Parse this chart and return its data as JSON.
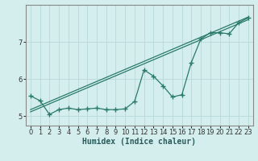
{
  "title": "",
  "xlabel": "Humidex (Indice chaleur)",
  "bg_color": "#d4eeee",
  "line_color": "#2a7a6a",
  "grid_color": "#b8d8d8",
  "x_data": [
    0,
    1,
    2,
    3,
    4,
    5,
    6,
    7,
    8,
    9,
    10,
    11,
    12,
    13,
    14,
    15,
    16,
    17,
    18,
    19,
    20,
    21,
    22,
    23
  ],
  "y_data": [
    5.55,
    5.42,
    5.05,
    5.18,
    5.22,
    5.18,
    5.2,
    5.22,
    5.18,
    5.18,
    5.2,
    5.4,
    6.25,
    6.08,
    5.82,
    5.52,
    5.58,
    6.45,
    7.08,
    7.25,
    7.25,
    7.22,
    7.52,
    7.65
  ],
  "trend1_x": [
    0,
    23
  ],
  "trend1_y": [
    5.12,
    7.6
  ],
  "trend2_x": [
    0,
    23
  ],
  "trend2_y": [
    5.18,
    7.67
  ],
  "ylim": [
    4.75,
    8.0
  ],
  "xlim": [
    -0.5,
    23.5
  ],
  "yticks": [
    5,
    6,
    7
  ],
  "xticks": [
    0,
    1,
    2,
    3,
    4,
    5,
    6,
    7,
    8,
    9,
    10,
    11,
    12,
    13,
    14,
    15,
    16,
    17,
    18,
    19,
    20,
    21,
    22,
    23
  ],
  "marker": "+",
  "markersize": 4,
  "markeredgewidth": 1.0,
  "linewidth": 0.9,
  "trend_linewidth": 0.9,
  "xlabel_fontsize": 7,
  "tick_fontsize": 6,
  "spine_color": "#888888"
}
